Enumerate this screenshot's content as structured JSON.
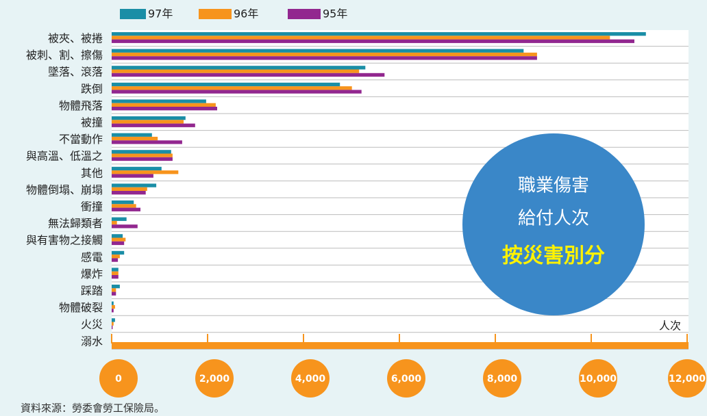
{
  "chart_data": {
    "type": "hbar",
    "unit_label": "人次",
    "source": "資料來源：勞委會勞工保險局。",
    "annotation": [
      "職業傷害",
      "給付人次",
      "按災害別分"
    ],
    "categories": [
      "被夾、被捲",
      "被刺、割、擦傷",
      "墜落、滾落",
      "跌倒",
      "物體飛落",
      "被撞",
      "不當動作",
      "與高溫、低溫之",
      "其他",
      "物體倒塌、崩塌",
      "衝撞",
      "無法歸類者",
      "與有害物之接觸",
      "感電",
      "爆炸",
      "踩踏",
      "物體破裂",
      "火災",
      "溺水"
    ],
    "series": [
      {
        "name": "97年",
        "color": "#1a8ea6",
        "values": [
          11140,
          8590,
          5290,
          4760,
          1970,
          1540,
          840,
          1240,
          1040,
          930,
          460,
          310,
          230,
          260,
          140,
          170,
          40,
          70,
          0
        ]
      },
      {
        "name": "96年",
        "color": "#f7941d",
        "values": [
          10390,
          8870,
          5160,
          5010,
          2170,
          1500,
          960,
          1270,
          1390,
          740,
          510,
          110,
          290,
          170,
          140,
          90,
          70,
          40,
          0
        ]
      },
      {
        "name": "95年",
        "color": "#92278f",
        "values": [
          10900,
          8870,
          5690,
          5210,
          2200,
          1740,
          1470,
          1270,
          870,
          710,
          600,
          540,
          260,
          130,
          140,
          90,
          40,
          20,
          0
        ]
      }
    ],
    "xlim": [
      0,
      12000
    ],
    "xticks": [
      0,
      {
        "value": 2000,
        "label": "2,000"
      },
      {
        "value": 4000,
        "label": "4,000"
      },
      {
        "value": 6000,
        "label": "6,000"
      },
      {
        "value": 8000,
        "label": "8,000"
      },
      {
        "value": 10000,
        "label": "10,000"
      },
      {
        "value": 12000,
        "label": "12,000"
      }
    ],
    "legend": "top"
  }
}
